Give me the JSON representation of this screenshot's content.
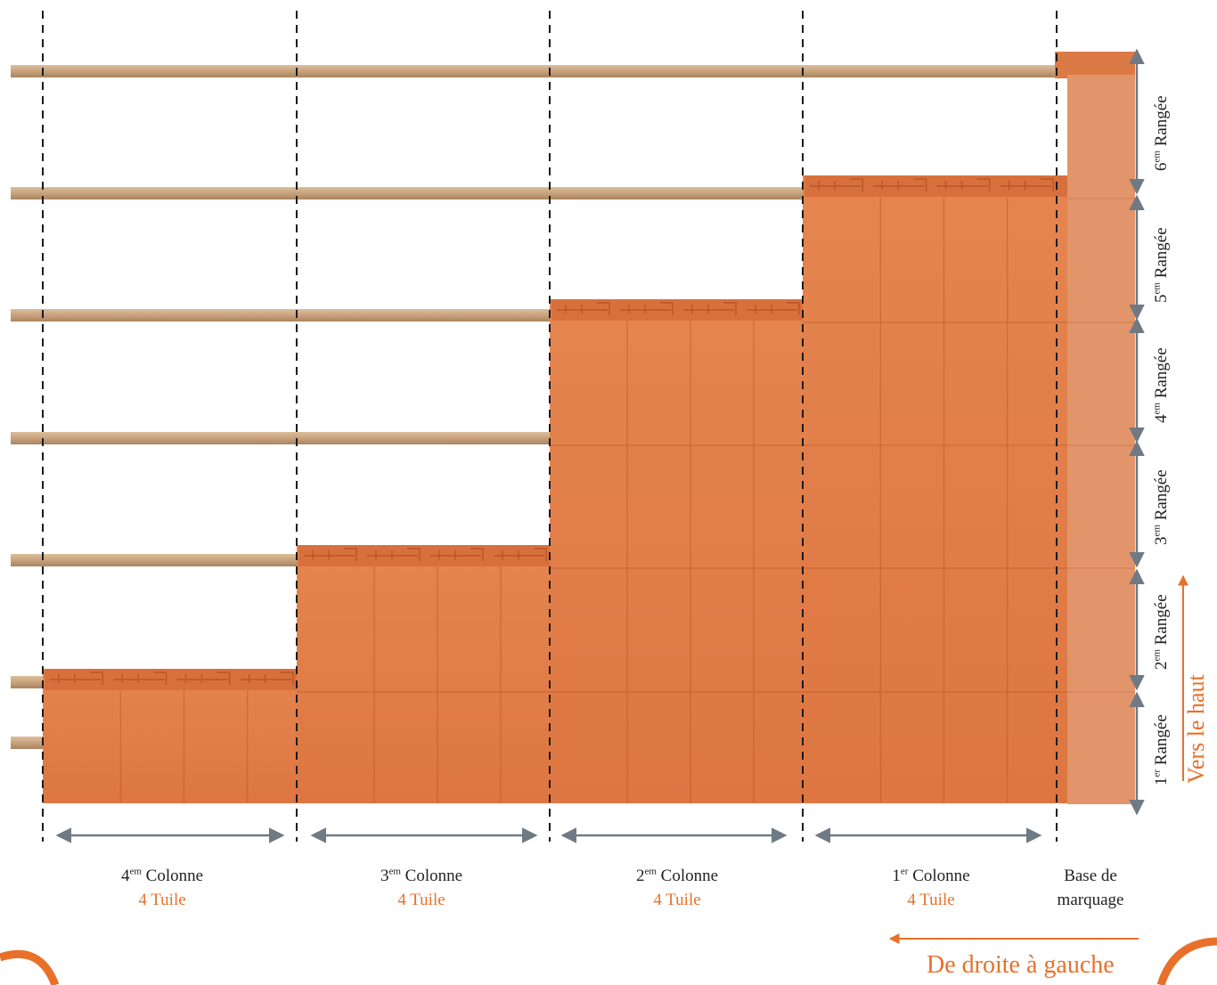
{
  "columns": [
    {
      "num": "4",
      "sup": "em",
      "word": "Colonne",
      "count": "4 Tuile"
    },
    {
      "num": "3",
      "sup": "em",
      "word": "Colonne",
      "count": "4 Tuile"
    },
    {
      "num": "2",
      "sup": "em",
      "word": "Colonne",
      "count": "4 Tuile"
    },
    {
      "num": "1",
      "sup": "er",
      "word": "Colonne",
      "count": "4 Tuile"
    }
  ],
  "base_label": {
    "line1": "Base de",
    "line2": "marquage"
  },
  "rows": [
    {
      "num": "1",
      "sup": "er",
      "word": "Rangée"
    },
    {
      "num": "2",
      "sup": "em",
      "word": "Rangée"
    },
    {
      "num": "3",
      "sup": "em",
      "word": "Rangée"
    },
    {
      "num": "4",
      "sup": "em",
      "word": "Rangée"
    },
    {
      "num": "5",
      "sup": "em",
      "word": "Rangée"
    },
    {
      "num": "6",
      "sup": "em",
      "word": "Rangée"
    }
  ],
  "direction_up": "Vers le haut",
  "direction_left": "De droite à gauche",
  "colors": {
    "tile": "#e27d48",
    "tile_dark": "#b9552a",
    "batten": "#c9a27c",
    "accent": "#e8702a",
    "arrow": "#6f7a85",
    "guide": "#1a1a1a"
  }
}
